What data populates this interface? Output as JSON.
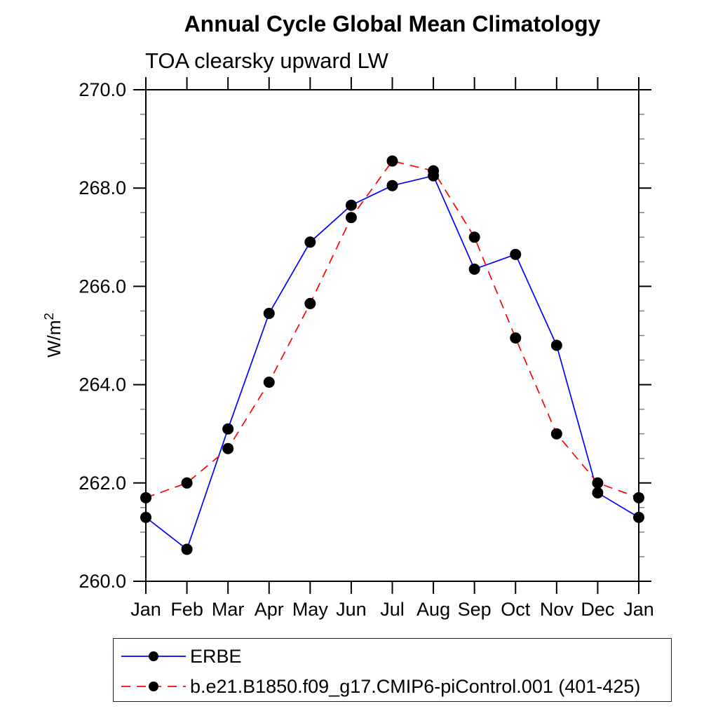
{
  "header": {
    "title": "Annual Cycle Global Mean Climatology",
    "subtitle": "TOA clearsky upward LW"
  },
  "chart_data": {
    "type": "line",
    "title": "Annual Cycle Global Mean Climatology",
    "subtitle": "TOA clearsky upward LW",
    "ylabel": "W/m²",
    "ylabel_base": "W/m",
    "ylabel_sup": "2",
    "xlabel": "",
    "categories": [
      "Jan",
      "Feb",
      "Mar",
      "Apr",
      "May",
      "Jun",
      "Jul",
      "Aug",
      "Sep",
      "Oct",
      "Nov",
      "Dec",
      "Jan"
    ],
    "ylim": [
      260.0,
      270.0
    ],
    "ytick_major_values": [
      260.0,
      262.0,
      264.0,
      266.0,
      268.0,
      270.0
    ],
    "ytick_labels": [
      "260.0",
      "262.0",
      "264.0",
      "266.0",
      "268.0",
      "270.0"
    ],
    "ytick_minor_step": 0.5,
    "grid": false,
    "legend_position": "bottom-left-box",
    "marker": "filled-circle",
    "marker_color": "#000000",
    "series": [
      {
        "name": "ERBE",
        "color": "#0000ff",
        "style": "solid",
        "values": [
          261.3,
          260.65,
          263.1,
          265.45,
          266.9,
          267.65,
          268.05,
          268.25,
          266.35,
          266.65,
          264.8,
          261.8,
          261.3
        ]
      },
      {
        "name": "b.e21.B1850.f09_g17.CMIP6-piControl.001 (401-425)",
        "color": "#ff0000",
        "style": "dashed",
        "values": [
          261.7,
          262.0,
          262.7,
          264.05,
          265.65,
          267.4,
          268.55,
          268.35,
          267.0,
          264.95,
          263.0,
          262.0,
          261.7
        ]
      }
    ]
  },
  "colors": {
    "axis": "#000000",
    "minor_tick": "#808080",
    "text": "#000000",
    "background": "#ffffff"
  }
}
